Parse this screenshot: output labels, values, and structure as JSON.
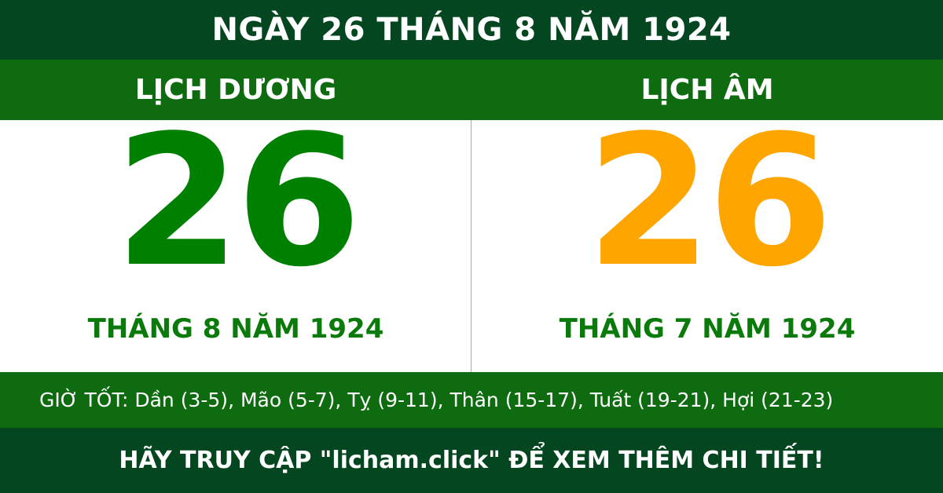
{
  "title": "NGÀY 26 THÁNG 8 NĂM 1924",
  "solar": {
    "heading": "LỊCH DƯƠNG",
    "day": "26",
    "month_year": "THÁNG 8 NĂM 1924"
  },
  "lunar": {
    "heading": "LỊCH ÂM",
    "day": "26",
    "month_year": "THÁNG 7 NĂM 1924"
  },
  "good_hours": "GIỜ TỐT: Dần (3-5), Mão (5-7), Tỵ (9-11), Thân (15-17), Tuất (19-21), Hợi (21-23)",
  "footer": "HÃY TRUY CẬP \"licham.click\" ĐỂ XEM THÊM CHI TIẾT!",
  "colors": {
    "dark_green": "#03461f",
    "green": "#0f6b10",
    "solar_number": "#008000",
    "lunar_number": "#ffa500"
  }
}
